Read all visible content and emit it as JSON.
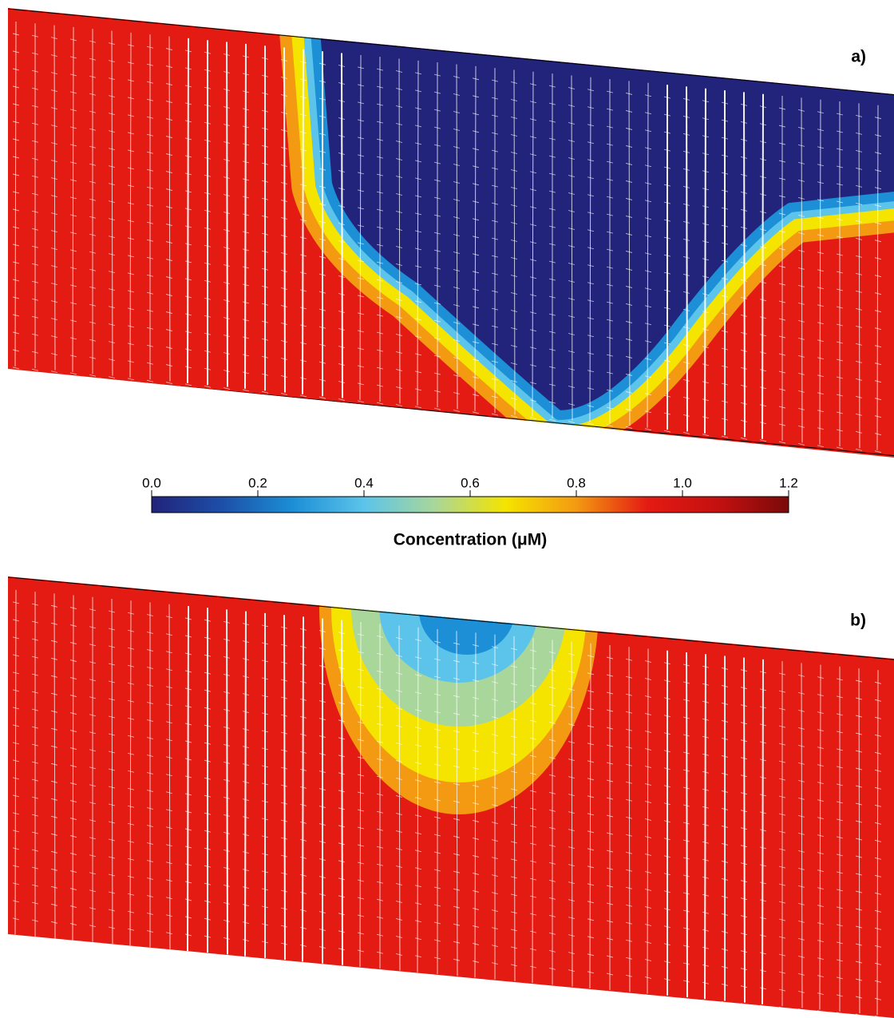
{
  "chart_data": {
    "type": "contour",
    "panels": [
      {
        "label": "a)"
      },
      {
        "label": "b)"
      }
    ],
    "colorbar_label": "Concentration (μM)",
    "clim": [
      0,
      1.2
    ],
    "cticks": [
      {
        "value": 0,
        "label": "0.0"
      },
      {
        "value": 0.2,
        "label": "0.2"
      },
      {
        "value": 0.4,
        "label": "0.4"
      },
      {
        "value": 0.6,
        "label": "0.6"
      },
      {
        "value": 0.8,
        "label": "0.8"
      },
      {
        "value": 1,
        "label": "1.0"
      },
      {
        "value": 1.2,
        "label": "1.2"
      }
    ],
    "colormap": [
      "#22237a",
      "#1d4fa8",
      "#1c8fd6",
      "#5cc4ea",
      "#a9d69a",
      "#f5e400",
      "#f39a12",
      "#e41b13",
      "#c41010",
      "#7a0a0a"
    ]
  }
}
